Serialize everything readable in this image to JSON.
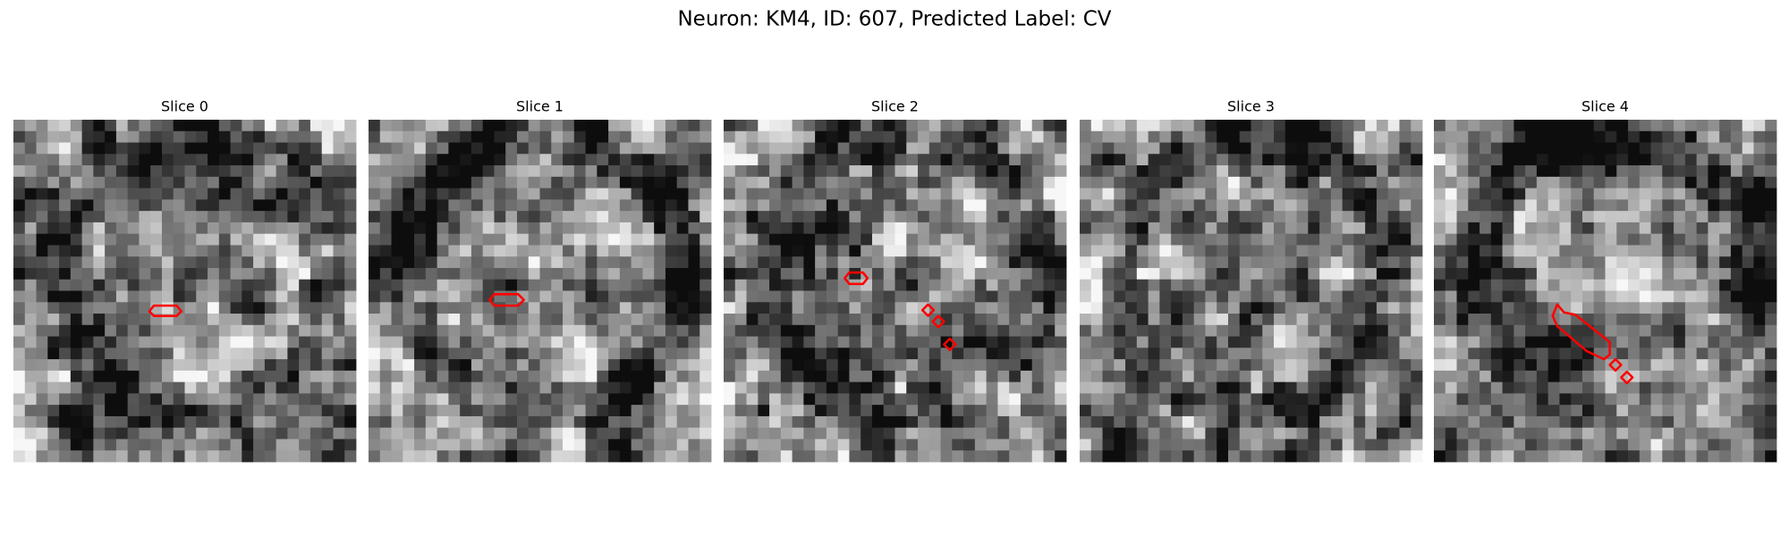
{
  "title": "Neuron: KM4, ID: 607, Predicted Label: CV",
  "panels": [
    {
      "title": "Slice 0"
    },
    {
      "title": "Slice 1"
    },
    {
      "title": "Slice 2"
    },
    {
      "title": "Slice 3"
    },
    {
      "title": "Slice 4"
    }
  ]
}
